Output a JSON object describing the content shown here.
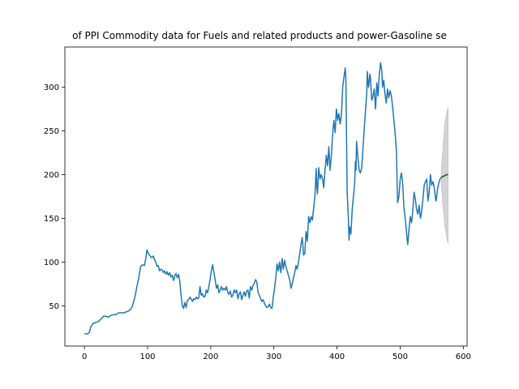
{
  "chart_data": {
    "type": "line",
    "title": "of PPI Commodity data for Fuels and related products and power-Gasoline se",
    "xlabel": "",
    "ylabel": "",
    "xlim": [
      -31,
      606
    ],
    "ylim": [
      4,
      346
    ],
    "xticks": [
      0,
      100,
      200,
      300,
      400,
      500,
      600
    ],
    "yticks": [
      50,
      100,
      150,
      200,
      250,
      300
    ],
    "grid": false,
    "series": [
      {
        "role": "history",
        "color": "#1f77b4",
        "points": [
          [
            0,
            18
          ],
          [
            5,
            18
          ],
          [
            8,
            20
          ],
          [
            10,
            26
          ],
          [
            14,
            30
          ],
          [
            18,
            31
          ],
          [
            22,
            32
          ],
          [
            26,
            35
          ],
          [
            30,
            38
          ],
          [
            34,
            38
          ],
          [
            38,
            37
          ],
          [
            42,
            39
          ],
          [
            46,
            40
          ],
          [
            50,
            40
          ],
          [
            54,
            42
          ],
          [
            58,
            42
          ],
          [
            62,
            42
          ],
          [
            66,
            43
          ],
          [
            70,
            44
          ],
          [
            74,
            47
          ],
          [
            76,
            50
          ],
          [
            80,
            60
          ],
          [
            83,
            72
          ],
          [
            86,
            82
          ],
          [
            89,
            95
          ],
          [
            92,
            97
          ],
          [
            95,
            96
          ],
          [
            97,
            104
          ],
          [
            99,
            114
          ],
          [
            101,
            110
          ],
          [
            103,
            108
          ],
          [
            105,
            106
          ],
          [
            107,
            105
          ],
          [
            109,
            107
          ],
          [
            111,
            103
          ],
          [
            113,
            100
          ],
          [
            115,
            95
          ],
          [
            117,
            96
          ],
          [
            119,
            90
          ],
          [
            121,
            92
          ],
          [
            123,
            91
          ],
          [
            125,
            88
          ],
          [
            127,
            90
          ],
          [
            129,
            86
          ],
          [
            131,
            89
          ],
          [
            133,
            85
          ],
          [
            135,
            88
          ],
          [
            137,
            83
          ],
          [
            139,
            85
          ],
          [
            141,
            79
          ],
          [
            143,
            84
          ],
          [
            145,
            87
          ],
          [
            147,
            82
          ],
          [
            149,
            86
          ],
          [
            151,
            78
          ],
          [
            153,
            62
          ],
          [
            155,
            50
          ],
          [
            157,
            47
          ],
          [
            159,
            54
          ],
          [
            161,
            48
          ],
          [
            163,
            56
          ],
          [
            165,
            57
          ],
          [
            167,
            60
          ],
          [
            169,
            58
          ],
          [
            171,
            55
          ],
          [
            173,
            58
          ],
          [
            175,
            57
          ],
          [
            177,
            60
          ],
          [
            179,
            58
          ],
          [
            181,
            59
          ],
          [
            183,
            72
          ],
          [
            185,
            62
          ],
          [
            187,
            64
          ],
          [
            189,
            60
          ],
          [
            191,
            61
          ],
          [
            193,
            68
          ],
          [
            195,
            65
          ],
          [
            197,
            72
          ],
          [
            199,
            80
          ],
          [
            201,
            90
          ],
          [
            203,
            97
          ],
          [
            205,
            88
          ],
          [
            207,
            80
          ],
          [
            209,
            70
          ],
          [
            211,
            74
          ],
          [
            213,
            65
          ],
          [
            215,
            68
          ],
          [
            217,
            72
          ],
          [
            219,
            68
          ],
          [
            221,
            70
          ],
          [
            223,
            68
          ],
          [
            225,
            72
          ],
          [
            227,
            65
          ],
          [
            229,
            63
          ],
          [
            231,
            67
          ],
          [
            233,
            60
          ],
          [
            235,
            62
          ],
          [
            237,
            68
          ],
          [
            239,
            65
          ],
          [
            241,
            68
          ],
          [
            243,
            58
          ],
          [
            245,
            64
          ],
          [
            247,
            66
          ],
          [
            249,
            57
          ],
          [
            251,
            62
          ],
          [
            253,
            66
          ],
          [
            255,
            61
          ],
          [
            257,
            67
          ],
          [
            259,
            68
          ],
          [
            261,
            59
          ],
          [
            263,
            72
          ],
          [
            265,
            68
          ],
          [
            267,
            73
          ],
          [
            269,
            76
          ],
          [
            271,
            80
          ],
          [
            273,
            77
          ],
          [
            275,
            65
          ],
          [
            277,
            62
          ],
          [
            279,
            58
          ],
          [
            281,
            55
          ],
          [
            283,
            57
          ],
          [
            285,
            53
          ],
          [
            287,
            50
          ],
          [
            289,
            48
          ],
          [
            291,
            49
          ],
          [
            293,
            52
          ],
          [
            295,
            48
          ],
          [
            297,
            47
          ],
          [
            299,
            60
          ],
          [
            301,
            70
          ],
          [
            303,
            82
          ],
          [
            305,
            98
          ],
          [
            307,
            90
          ],
          [
            309,
            100
          ],
          [
            311,
            88
          ],
          [
            313,
            104
          ],
          [
            315,
            92
          ],
          [
            317,
            102
          ],
          [
            319,
            95
          ],
          [
            321,
            90
          ],
          [
            323,
            85
          ],
          [
            325,
            80
          ],
          [
            327,
            70
          ],
          [
            329,
            75
          ],
          [
            331,
            82
          ],
          [
            333,
            88
          ],
          [
            335,
            96
          ],
          [
            337,
            92
          ],
          [
            339,
            100
          ],
          [
            341,
            110
          ],
          [
            343,
            120
          ],
          [
            345,
            128
          ],
          [
            347,
            108
          ],
          [
            349,
            110
          ],
          [
            351,
            135
          ],
          [
            353,
            124
          ],
          [
            355,
            152
          ],
          [
            357,
            145
          ],
          [
            359,
            152
          ],
          [
            361,
            148
          ],
          [
            363,
            162
          ],
          [
            365,
            175
          ],
          [
            367,
            207
          ],
          [
            368,
            185
          ],
          [
            369,
            178
          ],
          [
            371,
            208
          ],
          [
            373,
            195
          ],
          [
            375,
            200
          ],
          [
            377,
            196
          ],
          [
            379,
            185
          ],
          [
            381,
            205
          ],
          [
            383,
            222
          ],
          [
            385,
            210
          ],
          [
            387,
            232
          ],
          [
            389,
            205
          ],
          [
            391,
            222
          ],
          [
            393,
            245
          ],
          [
            395,
            262
          ],
          [
            397,
            248
          ],
          [
            399,
            275
          ],
          [
            401,
            262
          ],
          [
            403,
            270
          ],
          [
            405,
            258
          ],
          [
            407,
            268
          ],
          [
            409,
            300
          ],
          [
            411,
            312
          ],
          [
            413,
            322
          ],
          [
            414,
            310
          ],
          [
            416,
            180
          ],
          [
            418,
            150
          ],
          [
            419,
            125
          ],
          [
            420,
            140
          ],
          [
            422,
            132
          ],
          [
            424,
            160
          ],
          [
            426,
            175
          ],
          [
            428,
            190
          ],
          [
            429,
            215
          ],
          [
            430,
            205
          ],
          [
            431,
            238
          ],
          [
            433,
            220
          ],
          [
            435,
            205
          ],
          [
            437,
            202
          ],
          [
            439,
            208
          ],
          [
            441,
            228
          ],
          [
            443,
            252
          ],
          [
            445,
            272
          ],
          [
            447,
            292
          ],
          [
            448,
            318
          ],
          [
            449,
            305
          ],
          [
            450,
            300
          ],
          [
            452,
            315
          ],
          [
            453,
            310
          ],
          [
            455,
            285
          ],
          [
            457,
            290
          ],
          [
            459,
            298
          ],
          [
            461,
            275
          ],
          [
            463,
            305
          ],
          [
            465,
            290
          ],
          [
            467,
            316
          ],
          [
            469,
            328
          ],
          [
            471,
            318
          ],
          [
            472,
            300
          ],
          [
            474,
            308
          ],
          [
            476,
            292
          ],
          [
            478,
            282
          ],
          [
            480,
            298
          ],
          [
            482,
            288
          ],
          [
            484,
            296
          ],
          [
            486,
            290
          ],
          [
            488,
            278
          ],
          [
            490,
            262
          ],
          [
            492,
            248
          ],
          [
            494,
            228
          ],
          [
            495,
            195
          ],
          [
            496,
            168
          ],
          [
            498,
            175
          ],
          [
            500,
            195
          ],
          [
            502,
            202
          ],
          [
            504,
            190
          ],
          [
            506,
            162
          ],
          [
            508,
            150
          ],
          [
            510,
            135
          ],
          [
            512,
            120
          ],
          [
            514,
            138
          ],
          [
            516,
            152
          ],
          [
            518,
            145
          ],
          [
            520,
            158
          ],
          [
            522,
            180
          ],
          [
            524,
            172
          ],
          [
            526,
            160
          ],
          [
            528,
            155
          ],
          [
            530,
            165
          ],
          [
            532,
            150
          ],
          [
            534,
            158
          ],
          [
            536,
            172
          ],
          [
            538,
            188
          ],
          [
            540,
            192
          ],
          [
            542,
            195
          ],
          [
            544,
            170
          ],
          [
            546,
            180
          ],
          [
            548,
            200
          ],
          [
            550,
            188
          ],
          [
            552,
            192
          ],
          [
            554,
            185
          ],
          [
            556,
            172
          ],
          [
            557,
            170
          ],
          [
            559,
            183
          ],
          [
            561,
            190
          ],
          [
            563,
            195
          ],
          [
            565,
            197
          ]
        ]
      },
      {
        "role": "forecast",
        "color": "#006400",
        "points": [
          [
            565,
            197
          ],
          [
            568,
            198
          ],
          [
            571,
            199
          ],
          [
            574,
            200
          ],
          [
            576,
            200
          ]
        ]
      }
    ],
    "confidence_band": {
      "color": "#d3d3d3",
      "x": [
        565,
        568,
        571,
        574,
        576
      ],
      "upper": [
        205,
        235,
        260,
        272,
        277
      ],
      "lower": [
        190,
        162,
        140,
        127,
        121
      ]
    }
  }
}
